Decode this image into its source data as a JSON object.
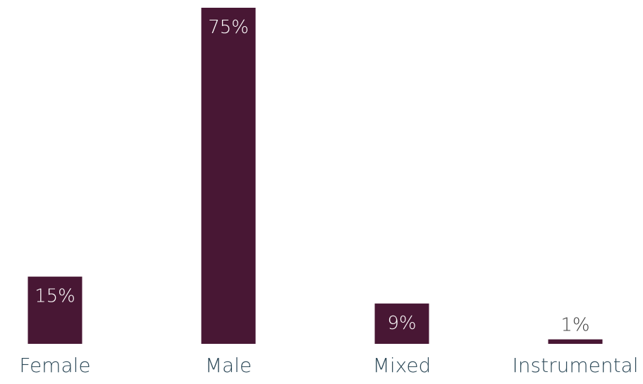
{
  "chart_data": {
    "type": "bar",
    "categories": [
      "Female",
      "Male",
      "Mixed",
      "Instrumental"
    ],
    "values": [
      15,
      75,
      9,
      1
    ],
    "data_labels": [
      "15%",
      "75%",
      "9%",
      "1%"
    ],
    "ylim": [
      0,
      75
    ],
    "grid": false,
    "legend": "none",
    "colors": {
      "bar": "#481734",
      "label_inside": "#ffffff",
      "label_outside": "#3f3f3f",
      "category_text": "#2e4a59"
    }
  }
}
